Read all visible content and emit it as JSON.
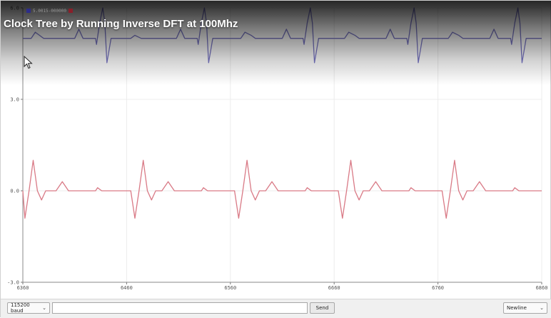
{
  "video_title": "Clock Tree by Running Inverse DFT at 100Mhz",
  "legend": {
    "text": "5.0015-000000"
  },
  "chart_data": {
    "type": "line",
    "x_ticks": [
      "6360",
      "6460",
      "6560",
      "6660",
      "6760",
      "6860"
    ],
    "y_ticks": [
      "6.0",
      "3.0",
      "0.0",
      "-3.0"
    ],
    "xlim": [
      6360,
      6860
    ],
    "ylim": [
      -3.0,
      6.0
    ],
    "grid": true,
    "series": [
      {
        "color": "#7b78c9",
        "x": [
          6360,
          6362,
          6368,
          6372,
          6376,
          6380,
          6384,
          6410,
          6414,
          6418,
          6424,
          6430,
          6431,
          6434,
          6437,
          6439,
          6441,
          6445,
          6450,
          6464,
          6468,
          6474,
          6478,
          6508,
          6512,
          6516,
          6522,
          6528,
          6529,
          6532,
          6535,
          6537,
          6539,
          6543,
          6548,
          6570,
          6574,
          6580,
          6584,
          6610,
          6614,
          6618,
          6624,
          6630,
          6631,
          6634,
          6637,
          6639,
          6641,
          6645,
          6650,
          6670,
          6674,
          6680,
          6684,
          6710,
          6714,
          6718,
          6724,
          6730,
          6731,
          6734,
          6737,
          6739,
          6741,
          6745,
          6750,
          6770,
          6774,
          6780,
          6784,
          6810,
          6814,
          6818,
          6824,
          6830,
          6831,
          6834,
          6837,
          6839,
          6841,
          6845,
          6850,
          6860
        ],
        "y": [
          5.0,
          5.0,
          5.0,
          5.2,
          5.1,
          5.0,
          5.0,
          5.0,
          5.3,
          5.0,
          5.0,
          5.0,
          4.8,
          5.5,
          6.0,
          5.5,
          4.2,
          5.0,
          5.0,
          5.0,
          5.1,
          5.0,
          5.0,
          5.0,
          5.3,
          5.0,
          5.0,
          5.0,
          4.8,
          5.5,
          6.0,
          5.5,
          4.2,
          5.0,
          5.0,
          5.0,
          5.2,
          5.1,
          5.0,
          5.0,
          5.3,
          5.0,
          5.0,
          5.0,
          4.8,
          5.5,
          6.0,
          5.5,
          4.2,
          5.0,
          5.0,
          5.0,
          5.2,
          5.1,
          5.0,
          5.0,
          5.3,
          5.0,
          5.0,
          5.0,
          4.8,
          5.5,
          6.0,
          5.5,
          4.2,
          5.0,
          5.0,
          5.0,
          5.2,
          5.1,
          5.0,
          5.0,
          5.3,
          5.0,
          5.0,
          5.0,
          4.8,
          5.5,
          6.0,
          5.5,
          4.2,
          5.0,
          5.0,
          5.0
        ]
      },
      {
        "color": "#d97a86",
        "x": [
          6360,
          6362,
          6366,
          6370,
          6374,
          6378,
          6382,
          6392,
          6398,
          6404,
          6410,
          6430,
          6432,
          6436,
          6440,
          6464,
          6468,
          6472,
          6476,
          6480,
          6484,
          6488,
          6494,
          6500,
          6506,
          6512,
          6532,
          6534,
          6538,
          6542,
          6564,
          6568,
          6572,
          6576,
          6580,
          6584,
          6588,
          6594,
          6600,
          6606,
          6612,
          6632,
          6634,
          6638,
          6642,
          6664,
          6668,
          6672,
          6676,
          6680,
          6684,
          6688,
          6694,
          6700,
          6706,
          6712,
          6732,
          6734,
          6738,
          6742,
          6764,
          6768,
          6772,
          6776,
          6780,
          6784,
          6788,
          6794,
          6800,
          6806,
          6812,
          6832,
          6834,
          6838,
          6842,
          6860
        ],
        "y": [
          0.0,
          -0.9,
          0.0,
          1.0,
          0.0,
          -0.3,
          0.0,
          0.0,
          0.3,
          0.0,
          0.0,
          0.0,
          0.1,
          0.0,
          0.0,
          0.0,
          -0.9,
          0.0,
          1.0,
          0.0,
          -0.3,
          0.0,
          0.0,
          0.3,
          0.0,
          0.0,
          0.0,
          0.1,
          0.0,
          0.0,
          0.0,
          -0.9,
          0.0,
          1.0,
          0.0,
          -0.3,
          0.0,
          0.0,
          0.3,
          0.0,
          0.0,
          0.0,
          0.1,
          0.0,
          0.0,
          0.0,
          -0.9,
          0.0,
          1.0,
          0.0,
          -0.3,
          0.0,
          0.0,
          0.3,
          0.0,
          0.0,
          0.0,
          0.1,
          0.0,
          0.0,
          0.0,
          -0.9,
          0.0,
          1.0,
          0.0,
          -0.3,
          0.0,
          0.0,
          0.3,
          0.0,
          0.0,
          0.0,
          0.1,
          0.0,
          0.0,
          0.0
        ]
      }
    ]
  },
  "toolbar": {
    "baud": "115200 baud",
    "input_value": "",
    "send_label": "Send",
    "line_ending": "Newline"
  },
  "colors": {
    "series1": "#7b78c9",
    "series2": "#d97a86",
    "legend_sq1": "#2d2d8a",
    "legend_sq2": "#8a1f2a"
  },
  "icons": {
    "cursor": "mouse-pointer-icon",
    "chevron": "chevron-down-icon"
  }
}
